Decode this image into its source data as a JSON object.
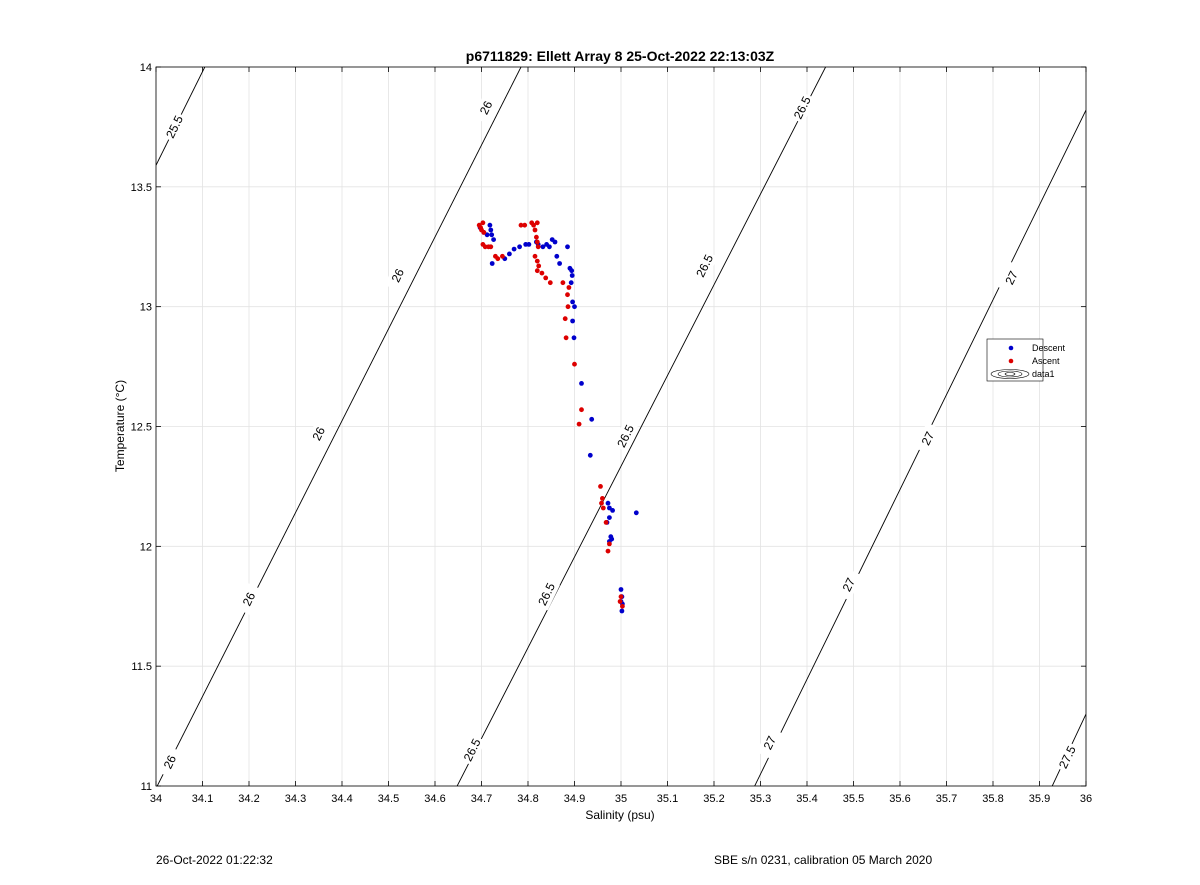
{
  "chart_data": {
    "type": "scatter",
    "title": "p6711829: Ellett Array 8 25-Oct-2022 22:13:03Z",
    "xlabel": "Salinity (psu)",
    "ylabel": "Temperature (°C)",
    "xlim": [
      34,
      36
    ],
    "ylim": [
      11,
      14
    ],
    "grid": true,
    "xticks": [
      "34",
      "34.1",
      "34.2",
      "34.3",
      "34.4",
      "34.5",
      "34.6",
      "34.7",
      "34.8",
      "34.9",
      "35",
      "35.1",
      "35.2",
      "35.3",
      "35.4",
      "35.5",
      "35.6",
      "35.7",
      "35.8",
      "35.9",
      "36"
    ],
    "yticks": [
      "11",
      "11.5",
      "12",
      "12.5",
      "13",
      "13.5",
      "14"
    ],
    "legend": {
      "placement": "right",
      "entries": [
        {
          "label": "Descent",
          "color": "#0000cc",
          "marker": "dot"
        },
        {
          "label": "Ascent",
          "color": "#dd0000",
          "marker": "dot"
        },
        {
          "label": "data1",
          "color": "#000000",
          "marker": "contour"
        }
      ]
    },
    "contour_lines": [
      {
        "label": "25.5",
        "points": [
          [
            34.0,
            13.59
          ],
          [
            34.105,
            14.0
          ]
        ]
      },
      {
        "label": "26",
        "points": [
          [
            34.0,
            10.99
          ],
          [
            34.785,
            14.0
          ]
        ]
      },
      {
        "label": "26.5",
        "points": [
          [
            34.645,
            10.99
          ],
          [
            35.44,
            14.0
          ]
        ]
      },
      {
        "label": "27",
        "points": [
          [
            35.285,
            10.99
          ],
          [
            36.0,
            13.82
          ]
        ]
      },
      {
        "label": "27.5",
        "points": [
          [
            35.925,
            10.99
          ],
          [
            36.0,
            11.3
          ]
        ]
      }
    ],
    "contour_labels": [
      {
        "text": "25.5",
        "x": 34.04,
        "y": 13.75,
        "angle": -64
      },
      {
        "text": "26",
        "x": 34.71,
        "y": 13.83,
        "angle": -64
      },
      {
        "text": "26",
        "x": 34.52,
        "y": 13.13,
        "angle": -64
      },
      {
        "text": "26",
        "x": 34.35,
        "y": 12.47,
        "angle": -64
      },
      {
        "text": "26",
        "x": 34.2,
        "y": 11.78,
        "angle": -64
      },
      {
        "text": "26",
        "x": 34.03,
        "y": 11.1,
        "angle": -64
      },
      {
        "text": "26.5",
        "x": 35.39,
        "y": 13.83,
        "angle": -64
      },
      {
        "text": "26.5",
        "x": 35.18,
        "y": 13.17,
        "angle": -64
      },
      {
        "text": "26.5",
        "x": 35.01,
        "y": 12.46,
        "angle": -64
      },
      {
        "text": "26.5",
        "x": 34.84,
        "y": 11.8,
        "angle": -64
      },
      {
        "text": "26.5",
        "x": 34.68,
        "y": 11.15,
        "angle": -64
      },
      {
        "text": "27",
        "x": 35.84,
        "y": 13.12,
        "angle": -64
      },
      {
        "text": "27",
        "x": 35.66,
        "y": 12.45,
        "angle": -64
      },
      {
        "text": "27",
        "x": 35.49,
        "y": 11.84,
        "angle": -64
      },
      {
        "text": "27",
        "x": 35.32,
        "y": 11.18,
        "angle": -64
      },
      {
        "text": "27.5",
        "x": 35.96,
        "y": 11.12,
        "angle": -64
      }
    ],
    "series": [
      {
        "name": "Descent",
        "color": "#0000cc",
        "points": [
          [
            34.697,
            13.33
          ],
          [
            34.705,
            13.31
          ],
          [
            34.712,
            13.3
          ],
          [
            34.718,
            13.34
          ],
          [
            34.72,
            13.32
          ],
          [
            34.722,
            13.3
          ],
          [
            34.726,
            13.28
          ],
          [
            34.723,
            13.18
          ],
          [
            34.75,
            13.2
          ],
          [
            34.76,
            13.22
          ],
          [
            34.77,
            13.24
          ],
          [
            34.782,
            13.25
          ],
          [
            34.795,
            13.26
          ],
          [
            34.802,
            13.26
          ],
          [
            34.818,
            13.27
          ],
          [
            34.822,
            13.26
          ],
          [
            34.832,
            13.25
          ],
          [
            34.84,
            13.26
          ],
          [
            34.846,
            13.25
          ],
          [
            34.852,
            13.28
          ],
          [
            34.858,
            13.27
          ],
          [
            34.862,
            13.21
          ],
          [
            34.868,
            13.18
          ],
          [
            34.885,
            13.25
          ],
          [
            34.89,
            13.16
          ],
          [
            34.894,
            13.15
          ],
          [
            34.895,
            13.13
          ],
          [
            34.893,
            13.1
          ],
          [
            34.896,
            13.02
          ],
          [
            34.9,
            13.0
          ],
          [
            34.896,
            12.94
          ],
          [
            34.899,
            12.87
          ],
          [
            34.915,
            12.68
          ],
          [
            34.937,
            12.53
          ],
          [
            34.934,
            12.38
          ],
          [
            35.033,
            12.14
          ],
          [
            34.972,
            12.18
          ],
          [
            34.975,
            12.16
          ],
          [
            34.982,
            12.15
          ],
          [
            34.975,
            12.12
          ],
          [
            34.97,
            12.1
          ],
          [
            34.978,
            12.04
          ],
          [
            34.98,
            12.03
          ],
          [
            34.975,
            12.02
          ],
          [
            35.0,
            11.82
          ],
          [
            35.002,
            11.79
          ],
          [
            35.0,
            11.77
          ],
          [
            35.003,
            11.76
          ],
          [
            35.002,
            11.73
          ]
        ]
      },
      {
        "name": "Ascent",
        "color": "#dd0000",
        "points": [
          [
            34.695,
            13.34
          ],
          [
            34.698,
            13.33
          ],
          [
            34.703,
            13.35
          ],
          [
            34.7,
            13.32
          ],
          [
            34.705,
            13.31
          ],
          [
            34.703,
            13.26
          ],
          [
            34.708,
            13.25
          ],
          [
            34.715,
            13.25
          ],
          [
            34.72,
            13.25
          ],
          [
            34.73,
            13.21
          ],
          [
            34.735,
            13.2
          ],
          [
            34.745,
            13.21
          ],
          [
            34.785,
            13.34
          ],
          [
            34.793,
            13.34
          ],
          [
            34.808,
            13.35
          ],
          [
            34.812,
            13.34
          ],
          [
            34.82,
            13.35
          ],
          [
            34.815,
            13.32
          ],
          [
            34.818,
            13.29
          ],
          [
            34.82,
            13.27
          ],
          [
            34.822,
            13.25
          ],
          [
            34.815,
            13.21
          ],
          [
            34.82,
            13.19
          ],
          [
            34.823,
            13.17
          ],
          [
            34.82,
            13.15
          ],
          [
            34.83,
            13.14
          ],
          [
            34.838,
            13.12
          ],
          [
            34.848,
            13.1
          ],
          [
            34.875,
            13.1
          ],
          [
            34.888,
            13.08
          ],
          [
            34.885,
            13.05
          ],
          [
            34.886,
            13.0
          ],
          [
            34.88,
            12.95
          ],
          [
            34.882,
            12.87
          ],
          [
            34.9,
            12.76
          ],
          [
            34.915,
            12.57
          ],
          [
            34.91,
            12.51
          ],
          [
            34.956,
            12.25
          ],
          [
            34.96,
            12.2
          ],
          [
            34.958,
            12.18
          ],
          [
            34.962,
            12.16
          ],
          [
            34.968,
            12.1
          ],
          [
            34.975,
            12.01
          ],
          [
            34.972,
            11.98
          ],
          [
            35.0,
            11.79
          ],
          [
            34.998,
            11.77
          ],
          [
            35.003,
            11.75
          ]
        ]
      }
    ]
  },
  "footer": {
    "timestamp": "26-Oct-2022 01:22:32",
    "calibration": "SBE s/n 0231, calibration 05 March 2020"
  }
}
